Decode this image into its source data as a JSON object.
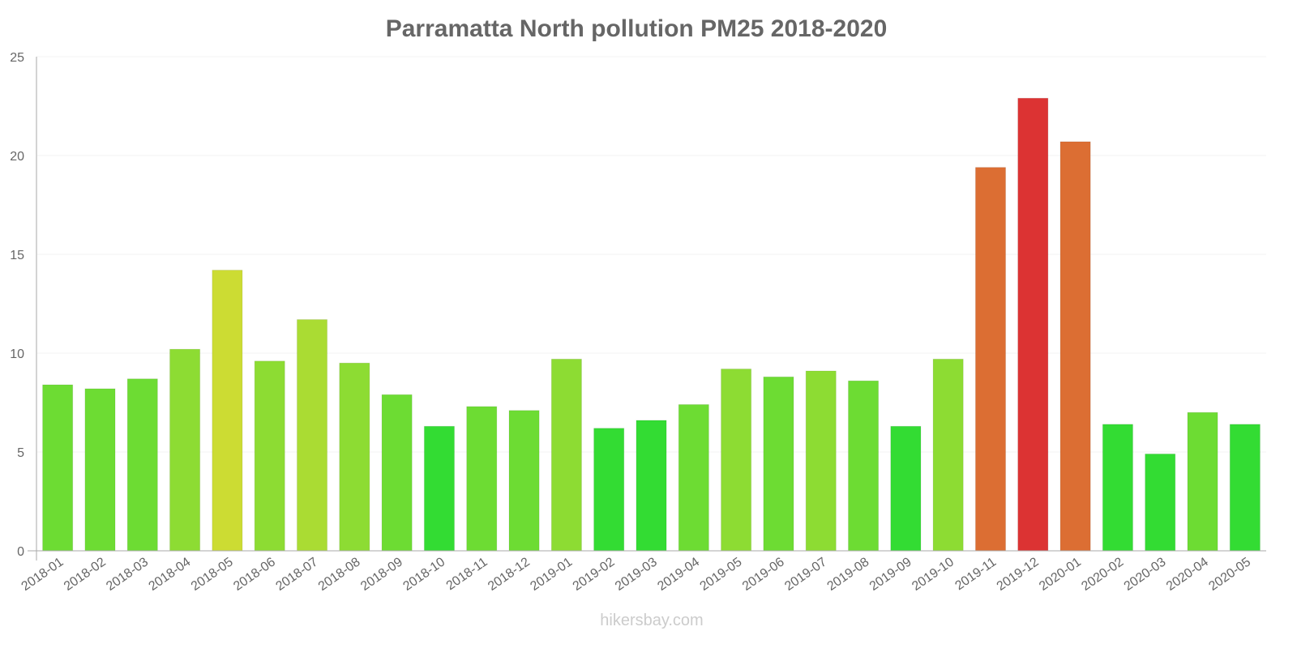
{
  "chart_data": {
    "type": "bar",
    "title": "Parramatta North pollution PM25 2018-2020",
    "xlabel": "",
    "ylabel": "",
    "ylim": [
      0,
      25
    ],
    "yticks": [
      0,
      5,
      10,
      15,
      20,
      25
    ],
    "categories": [
      "2018-01",
      "2018-02",
      "2018-03",
      "2018-04",
      "2018-05",
      "2018-06",
      "2018-07",
      "2018-08",
      "2018-09",
      "2018-10",
      "2018-11",
      "2018-12",
      "2019-01",
      "2019-02",
      "2019-03",
      "2019-04",
      "2019-05",
      "2019-06",
      "2019-07",
      "2019-08",
      "2019-09",
      "2019-10",
      "2019-11",
      "2019-12",
      "2020-01",
      "2020-02",
      "2020-03",
      "2020-04",
      "2020-05"
    ],
    "values": [
      8.4,
      8.2,
      8.7,
      10.2,
      14.2,
      9.6,
      11.7,
      9.5,
      7.9,
      6.3,
      7.3,
      7.1,
      9.7,
      6.2,
      6.6,
      7.4,
      9.2,
      8.8,
      9.1,
      8.6,
      6.3,
      9.7,
      19.4,
      22.9,
      20.7,
      6.4,
      4.9,
      7.0,
      6.4
    ],
    "colors": [
      "#6ddc33",
      "#6ddc33",
      "#6ddc33",
      "#8ddc33",
      "#ccdc33",
      "#8ddc33",
      "#aadc33",
      "#8ddc33",
      "#6ddc33",
      "#33dc33",
      "#6ddc33",
      "#6ddc33",
      "#8ddc33",
      "#33dc33",
      "#33dc33",
      "#6ddc33",
      "#8ddc33",
      "#6ddc33",
      "#8ddc33",
      "#6ddc33",
      "#33dc33",
      "#8ddc33",
      "#dc6e33",
      "#dc3333",
      "#dc6e33",
      "#33dc33",
      "#33dc33",
      "#6ddc33",
      "#33dc33"
    ],
    "grid": true,
    "legend": "none"
  },
  "watermark": "hikersbay.com"
}
